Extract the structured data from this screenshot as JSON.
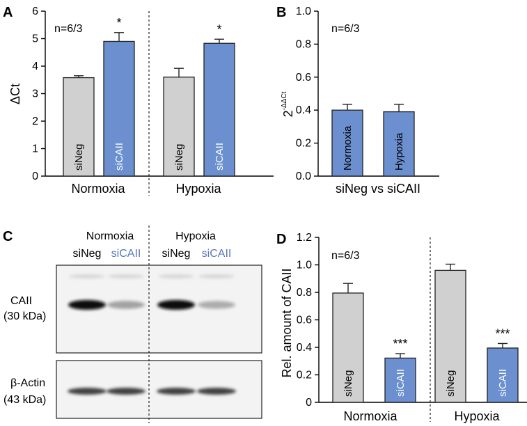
{
  "colors": {
    "siNeg": "#d0d0d0",
    "siCAII": "#6b8fcf",
    "bar_outline": "#222222",
    "blot_blue_text": "#5a7ab8"
  },
  "chart_data": [
    {
      "panel": "A",
      "type": "bar",
      "ylabel": "ΔCt",
      "ylim": [
        0,
        6
      ],
      "yticks": [
        "0",
        "1",
        "2",
        "3",
        "4",
        "5",
        "6"
      ],
      "n_label": "n=6/3",
      "groups": [
        "Normoxia",
        "Hypoxia"
      ],
      "bars": [
        {
          "group": "Normoxia",
          "label": "siNeg",
          "value": 3.58,
          "err": 0.07,
          "sig": ""
        },
        {
          "group": "Normoxia",
          "label": "siCAII",
          "value": 4.9,
          "err": 0.32,
          "sig": "*"
        },
        {
          "group": "Hypoxia",
          "label": "siNeg",
          "value": 3.6,
          "err": 0.32,
          "sig": ""
        },
        {
          "group": "Hypoxia",
          "label": "siCAII",
          "value": 4.83,
          "err": 0.15,
          "sig": "*"
        }
      ]
    },
    {
      "panel": "B",
      "type": "bar",
      "ylabel": "2^-ΔΔCt",
      "ylim": [
        0,
        1.0
      ],
      "yticks": [
        "0.0",
        "0.2",
        "0.4",
        "0.6",
        "0.8",
        "1.0"
      ],
      "n_label": "n=6/3",
      "xlabel": "siNeg vs siCAII",
      "bars": [
        {
          "label": "Normoxia",
          "value": 0.4,
          "err": 0.035
        },
        {
          "label": "Hypoxia",
          "value": 0.39,
          "err": 0.045
        }
      ]
    },
    {
      "panel": "D",
      "type": "bar",
      "ylabel": "Rel. amount of CAII",
      "ylim": [
        0,
        1.2
      ],
      "yticks": [
        "0",
        "0.2",
        "0.4",
        "0.6",
        "0.8",
        "1.0",
        "1.2"
      ],
      "n_label": "n=6/3",
      "groups": [
        "Normoxia",
        "Hypoxia"
      ],
      "bars": [
        {
          "group": "Normoxia",
          "label": "siNeg",
          "value": 0.795,
          "err": 0.07,
          "sig": ""
        },
        {
          "group": "Normoxia",
          "label": "siCAII",
          "value": 0.322,
          "err": 0.032,
          "sig": "***"
        },
        {
          "group": "Hypoxia",
          "label": "siNeg",
          "value": 0.96,
          "err": 0.045,
          "sig": ""
        },
        {
          "group": "Hypoxia",
          "label": "siCAII",
          "value": 0.395,
          "err": 0.033,
          "sig": "***"
        }
      ]
    }
  ],
  "blot": {
    "panel": "C",
    "headers": [
      "Normoxia",
      "Hypoxia"
    ],
    "lanes": [
      "siNeg",
      "siCAII",
      "siNeg",
      "siCAII"
    ],
    "caii_label": "CAII",
    "caii_kda": "(30 kDa)",
    "actin_label": "β-Actin",
    "actin_kda": "(43 kDa)",
    "caii_intensity": [
      1.0,
      0.35,
      1.0,
      0.3
    ],
    "actin_intensity": [
      0.85,
      0.85,
      0.85,
      0.85
    ]
  }
}
